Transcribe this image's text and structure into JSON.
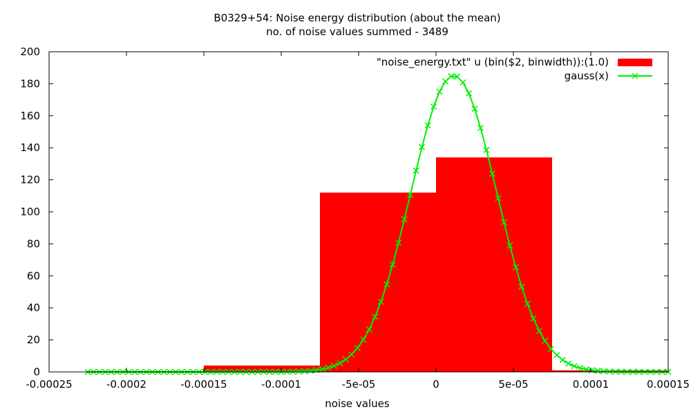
{
  "chart_data": {
    "type": "bar",
    "title": "B0329+54: Noise energy distribution (about the mean)",
    "subtitle": "no. of noise values summed - 3489",
    "xlabel": "noise values",
    "ylabel": "",
    "xlim": [
      -0.00025,
      0.00015
    ],
    "ylim": [
      0,
      200
    ],
    "x_ticks": [
      {
        "value": -0.00025,
        "label": "-0.00025"
      },
      {
        "value": -0.0002,
        "label": "-0.0002"
      },
      {
        "value": -0.00015,
        "label": "-0.00015"
      },
      {
        "value": -0.0001,
        "label": "-0.0001"
      },
      {
        "value": -5e-05,
        "label": "-5e-05"
      },
      {
        "value": 0,
        "label": "0"
      },
      {
        "value": 5e-05,
        "label": "5e-05"
      },
      {
        "value": 0.0001,
        "label": "0.0001"
      },
      {
        "value": 0.00015,
        "label": "0.00015"
      }
    ],
    "y_ticks": [
      {
        "value": 0,
        "label": "0"
      },
      {
        "value": 20,
        "label": "20"
      },
      {
        "value": 40,
        "label": "40"
      },
      {
        "value": 60,
        "label": "60"
      },
      {
        "value": 80,
        "label": "80"
      },
      {
        "value": 100,
        "label": "100"
      },
      {
        "value": 120,
        "label": "120"
      },
      {
        "value": 140,
        "label": "140"
      },
      {
        "value": 160,
        "label": "160"
      },
      {
        "value": 180,
        "label": "180"
      },
      {
        "value": 200,
        "label": "200"
      }
    ],
    "legend_position": "top-right",
    "grid": false,
    "series": [
      {
        "name": "\"noise_energy.txt\" u (bin($2, binwidth)):(1.0)",
        "kind": "histogram",
        "color": "#ff0000",
        "bins": [
          {
            "x0": -0.00015,
            "x1": -7.5e-05,
            "value": 4
          },
          {
            "x0": -7.5e-05,
            "x1": 0,
            "value": 112
          },
          {
            "x0": 0,
            "x1": 7.5e-05,
            "value": 134
          },
          {
            "x0": 7.5e-05,
            "x1": 0.00015,
            "value": 1
          }
        ]
      },
      {
        "name": "gauss(x)",
        "kind": "line-points",
        "color": "#00ee00",
        "function": {
          "amplitude": 185,
          "mean": 1.15e-05,
          "sigma": 2.775e-05
        },
        "sample_range": [
          -0.000225,
          0.00015
        ],
        "sample_count": 100
      }
    ]
  }
}
